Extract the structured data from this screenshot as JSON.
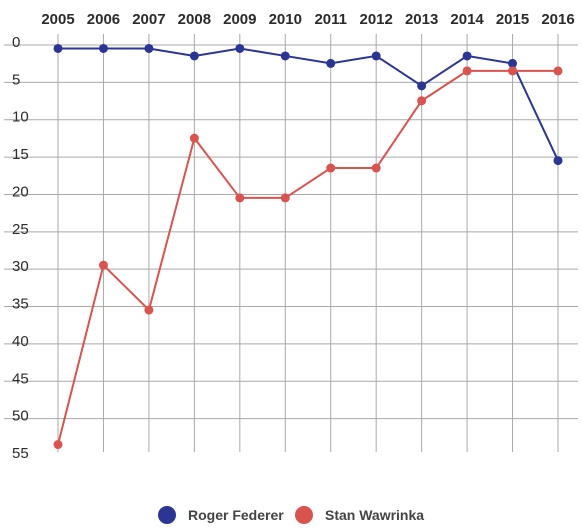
{
  "chart_data": {
    "type": "line",
    "title": "",
    "xlabel": "",
    "ylabel": "",
    "x": [
      "2005",
      "2006",
      "2007",
      "2008",
      "2009",
      "2010",
      "2011",
      "2012",
      "2013",
      "2014",
      "2015",
      "2016"
    ],
    "y_ticks": [
      "0",
      "5",
      "10",
      "15",
      "20",
      "25",
      "30",
      "35",
      "40",
      "45",
      "50",
      "55"
    ],
    "ylim": [
      0,
      55
    ],
    "y_reversed": true,
    "x_axis_position": "top",
    "grid": true,
    "legend_position": "bottom",
    "series": [
      {
        "name": "Roger Federer",
        "color": "#2b3593",
        "values": [
          1,
          1,
          1,
          2,
          1,
          2,
          3,
          2,
          6,
          2,
          3,
          16
        ]
      },
      {
        "name": "Stan Wawrinka",
        "color": "#d9534f",
        "values": [
          54,
          30,
          36,
          13,
          21,
          21,
          17,
          17,
          8,
          4,
          4,
          4
        ]
      }
    ]
  }
}
